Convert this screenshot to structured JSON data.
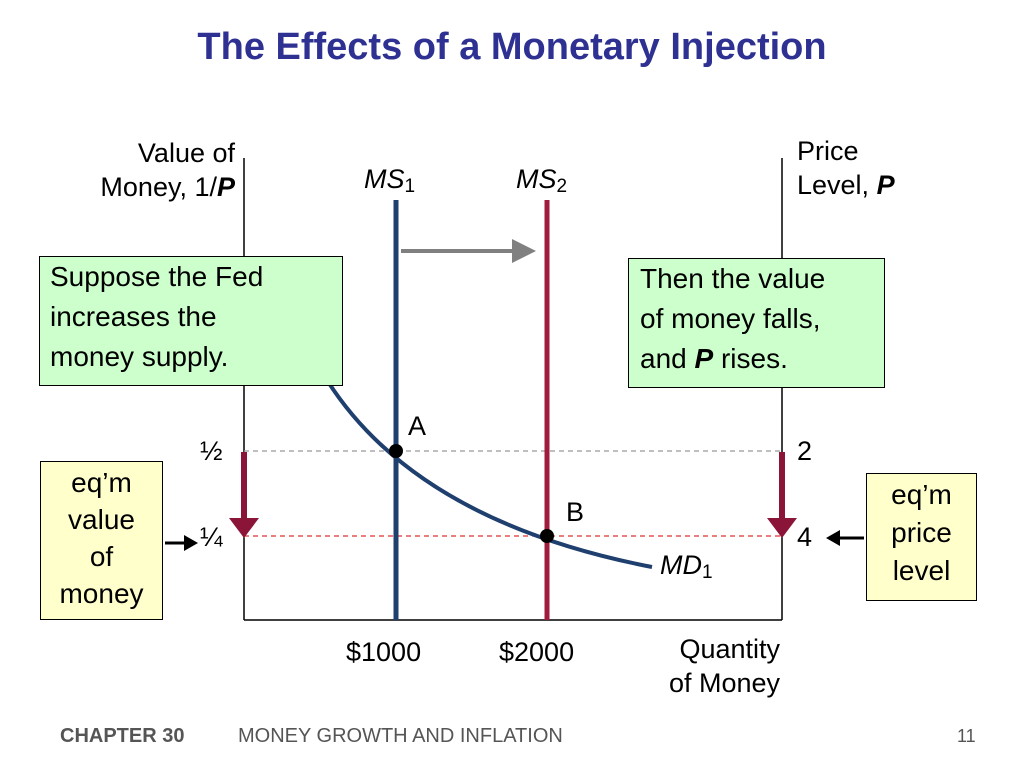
{
  "title": "The Effects of a Monetary Injection",
  "left_axis": {
    "line1": "Value of",
    "line2_prefix": "Money, 1/",
    "line2_var": "P"
  },
  "right_axis": {
    "line1": "Price",
    "line2_prefix": "Level, ",
    "line2_var": "P"
  },
  "x_axis": {
    "line1": "Quantity",
    "line2": "of Money"
  },
  "curves": {
    "ms1": {
      "base": "MS",
      "sub": "1",
      "color": "#1F3F6E"
    },
    "ms2": {
      "base": "MS",
      "sub": "2",
      "color": "#A01C3C"
    },
    "md1": {
      "base": "MD",
      "sub": "1",
      "color": "#1F3F6E"
    }
  },
  "points": {
    "a": "A",
    "b": "B"
  },
  "left_ticks": {
    "half": "½",
    "quarter": "¼"
  },
  "right_ticks": {
    "two": "2",
    "four": "4"
  },
  "x_ticks": {
    "q1": "$1000",
    "q2": "$2000"
  },
  "callouts": {
    "fed": {
      "line1": "Suppose the Fed",
      "line2": "increases the",
      "line3": "money supply."
    },
    "result": {
      "line1": "Then the value",
      "line2": "of money falls,",
      "line3_prefix": "and ",
      "line3_var": "P",
      "line3_suffix": " rises."
    },
    "eq_value": {
      "line1": "eq’m",
      "line2": "value",
      "line3": "of",
      "line4": "money"
    },
    "eq_price": {
      "line1": "eq’m",
      "line2": "price",
      "line3": "level"
    }
  },
  "footer": {
    "chapter": "CHAPTER 30",
    "section": "MONEY GROWTH AND INFLATION",
    "page": "11"
  },
  "colors": {
    "title": "#2E3192",
    "shift_arrow": "#808080",
    "drop_arrow": "#8B1538",
    "green_box": "#CCFFCC",
    "yellow_box": "#FFFFCC"
  }
}
